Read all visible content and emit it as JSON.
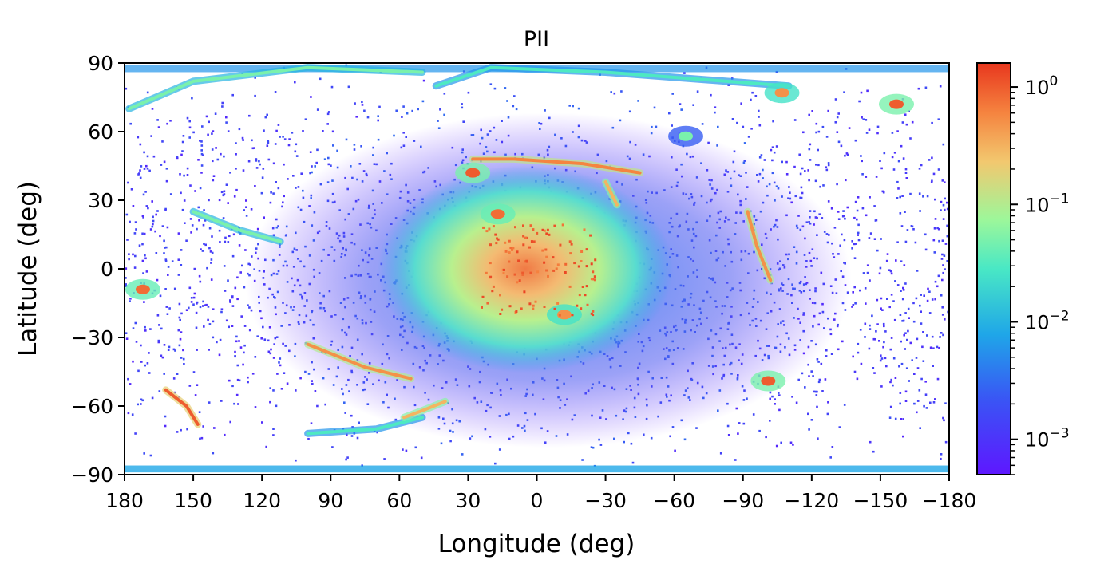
{
  "chart_data": {
    "type": "heatmap",
    "projection": "plate-carree sky map",
    "title": "PII",
    "xlabel": "Longitude (deg)",
    "ylabel": "Latitude (deg)",
    "xlim": [
      180,
      -180
    ],
    "ylim": [
      -90,
      90
    ],
    "x_ticks": [
      180,
      150,
      120,
      90,
      60,
      30,
      0,
      -30,
      -60,
      -90,
      -120,
      -150,
      -180
    ],
    "x_tick_labels": [
      "180",
      "150",
      "120",
      "90",
      "60",
      "30",
      "0",
      "−30",
      "−60",
      "−90",
      "−120",
      "−150",
      "−180"
    ],
    "y_ticks": [
      90,
      60,
      30,
      0,
      -30,
      -60,
      -90
    ],
    "y_tick_labels": [
      "90",
      "60",
      "30",
      "0",
      "−30",
      "−60",
      "−90"
    ],
    "grid": false,
    "colorbar": {
      "scale": "log",
      "colormap": "rainbow",
      "range": [
        0.0005,
        1.6
      ],
      "ticks": [
        1,
        0.1,
        0.01,
        0.001
      ],
      "tick_labels": [
        {
          "base": "10",
          "exp": "0"
        },
        {
          "base": "10",
          "exp": "−1"
        },
        {
          "base": "10",
          "exp": "−2"
        },
        {
          "base": "10",
          "exp": "−3"
        }
      ]
    },
    "features": {
      "central_bulge": {
        "lon": 0,
        "lat": 0,
        "value": 0.5
      },
      "hot_spots": [
        {
          "lon": 28,
          "lat": 42,
          "value": 1.0
        },
        {
          "lon": 17,
          "lat": 24,
          "value": 0.8
        },
        {
          "lon": -101,
          "lat": -49,
          "value": 1.0
        },
        {
          "lon": -157,
          "lat": 72,
          "value": 1.0
        },
        {
          "lon": -107,
          "lat": 77,
          "value": 0.5
        },
        {
          "lon": 172,
          "lat": -9,
          "value": 0.8
        },
        {
          "lon": -12,
          "lat": -20,
          "value": 0.5
        },
        {
          "lon": -65,
          "lat": 58,
          "value": 0.05
        }
      ],
      "streams": [
        {
          "points": [
            [
              162,
              -53
            ],
            [
              153,
              -60
            ],
            [
              148,
              -68
            ]
          ],
          "value": 1.0
        },
        {
          "points": [
            [
              100,
              -33
            ],
            [
              75,
              -43
            ],
            [
              55,
              -48
            ]
          ],
          "value": 0.5
        },
        {
          "points": [
            [
              44,
              80
            ],
            [
              20,
              88
            ],
            [
              -30,
              86
            ],
            [
              -110,
              80
            ]
          ],
          "value": 0.03
        },
        {
          "points": [
            [
              178,
              70
            ],
            [
              150,
              82
            ],
            [
              100,
              88
            ],
            [
              50,
              86
            ]
          ],
          "value": 0.05
        },
        {
          "points": [
            [
              150,
              25
            ],
            [
              130,
              17
            ],
            [
              112,
              12
            ]
          ],
          "value": 0.05
        },
        {
          "points": [
            [
              100,
              -72
            ],
            [
              70,
              -70
            ],
            [
              50,
              -65
            ]
          ],
          "value": 0.03
        },
        {
          "points": [
            [
              28,
              48
            ],
            [
              10,
              48
            ],
            [
              -20,
              46
            ],
            [
              -45,
              42
            ]
          ],
          "value": 0.6
        },
        {
          "points": [
            [
              -92,
              25
            ],
            [
              -96,
              10
            ],
            [
              -102,
              -5
            ]
          ],
          "value": 0.5
        },
        {
          "points": [
            [
              -30,
              38
            ],
            [
              -35,
              28
            ]
          ],
          "value": 0.3
        },
        {
          "points": [
            [
              58,
              -65
            ],
            [
              50,
              -62
            ],
            [
              40,
              -58
            ]
          ],
          "value": 0.3
        }
      ]
    }
  }
}
